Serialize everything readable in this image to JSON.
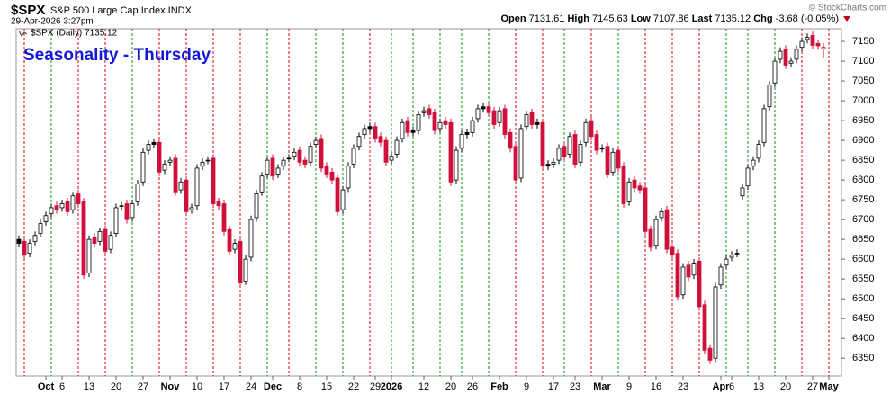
{
  "chart_data": {
    "type": "candlestick",
    "symbol": "$SPX",
    "name": "S&P 500 Large Cap Index INDX",
    "timestamp": "29-Apr-2026 3:27pm",
    "copyright": "© StockCharts.com",
    "legend": "$SPX (Daily) 7135.12",
    "title": "Seasonality - Thursday",
    "quote": [
      {
        "label": "Open",
        "value": 7131.61
      },
      {
        "label": "High",
        "value": 7145.63
      },
      {
        "label": "Low",
        "value": 7107.86
      },
      {
        "label": "Last",
        "value": 7135.12
      },
      {
        "label": "Chg",
        "value": -3.68,
        "extra": "(-0.05%)"
      }
    ],
    "up_color": "#000000",
    "down_color": "#d0103a",
    "ylim": [
      6305,
      7182
    ],
    "yticks": [
      6350,
      6400,
      6450,
      6500,
      6550,
      6600,
      6650,
      6700,
      6750,
      6800,
      6850,
      6900,
      6950,
      7000,
      7050,
      7100,
      7150
    ],
    "categories": [
      null,
      null,
      null,
      null,
      null,
      "Oct",
      null,
      null,
      "6",
      null,
      null,
      null,
      null,
      "13",
      null,
      null,
      null,
      null,
      "20",
      null,
      null,
      null,
      null,
      "27",
      null,
      null,
      null,
      null,
      "Nov",
      null,
      null,
      null,
      null,
      "10",
      null,
      null,
      null,
      null,
      "17",
      null,
      null,
      null,
      null,
      "24",
      null,
      null,
      null,
      "Dec",
      null,
      null,
      null,
      null,
      "8",
      null,
      null,
      null,
      null,
      "15",
      null,
      null,
      null,
      null,
      "22",
      null,
      null,
      null,
      "29",
      null,
      null,
      "2026",
      null,
      null,
      null,
      null,
      null,
      "12",
      null,
      null,
      null,
      null,
      "20",
      null,
      null,
      null,
      "26",
      null,
      null,
      null,
      null,
      "Feb",
      null,
      null,
      null,
      null,
      "9",
      null,
      null,
      null,
      null,
      "17",
      null,
      null,
      null,
      "23",
      null,
      null,
      null,
      null,
      "Mar",
      null,
      null,
      null,
      null,
      "9",
      null,
      null,
      null,
      null,
      "16",
      null,
      null,
      null,
      null,
      "23",
      null,
      null,
      null,
      null,
      null,
      null,
      "Apr",
      null,
      "6",
      null,
      null,
      null,
      null,
      "13",
      null,
      null,
      null,
      null,
      "20",
      null,
      null,
      null,
      null,
      "27",
      null,
      null,
      "May"
    ],
    "thursday_line": [
      null,
      "#d40000",
      null,
      null,
      null,
      null,
      "#009a00",
      null,
      null,
      null,
      null,
      "#d40000",
      null,
      null,
      null,
      null,
      "#d40000",
      null,
      null,
      null,
      null,
      "#009a00",
      null,
      null,
      null,
      null,
      "#d40000",
      null,
      null,
      null,
      null,
      "#d40000",
      null,
      null,
      null,
      null,
      "#d40000",
      null,
      null,
      null,
      null,
      "#d40000",
      null,
      null,
      null,
      null,
      "#009a00",
      null,
      null,
      null,
      "#d40000",
      null,
      null,
      null,
      null,
      "#009a00",
      null,
      null,
      null,
      null,
      "#009a00",
      null,
      null,
      null,
      null,
      "#d40000",
      null,
      null,
      null,
      "#009a00",
      null,
      null,
      null,
      "#009a00",
      null,
      null,
      null,
      null,
      "#009a00",
      null,
      null,
      null,
      "#009a00",
      null,
      null,
      null,
      null,
      "#009a00",
      null,
      null,
      null,
      null,
      "#d40000",
      null,
      null,
      null,
      null,
      "#d40000",
      null,
      null,
      null,
      "#009a00",
      null,
      null,
      null,
      null,
      "#d40000",
      null,
      null,
      null,
      null,
      "#009a00",
      null,
      null,
      null,
      null,
      "#d40000",
      null,
      null,
      null,
      null,
      "#d40000",
      null,
      null,
      null,
      null,
      "#d40000",
      null,
      null,
      null,
      null,
      "#009a00",
      null,
      null,
      null,
      "#009a00",
      null,
      null,
      null,
      null,
      "#009a00",
      null,
      null,
      null,
      null,
      "#d40000",
      null,
      null,
      null,
      null,
      "#d40000"
    ],
    "open": [
      6650,
      6645,
      6615,
      6645,
      6665,
      6695,
      6715,
      6735,
      6730,
      6745,
      6725,
      6765,
      6745,
      6565,
      6655,
      6645,
      6675,
      6625,
      6665,
      6735,
      6740,
      6705,
      6745,
      6795,
      6875,
      6895,
      6895,
      6825,
      6845,
      6855,
      6775,
      6800,
      6725,
      6735,
      6835,
      6850,
      6855,
      6745,
      6740,
      6675,
      6625,
      6645,
      6545,
      6605,
      6705,
      6770,
      6815,
      6855,
      6815,
      6835,
      6855,
      6860,
      6875,
      6850,
      6845,
      6890,
      6905,
      6835,
      6820,
      6805,
      6725,
      6780,
      6840,
      6885,
      6915,
      6935,
      6935,
      6910,
      6900,
      6850,
      6865,
      6905,
      6950,
      6925,
      6925,
      6970,
      6980,
      6970,
      6930,
      6950,
      6945,
      6800,
      6880,
      6920,
      6920,
      6955,
      6985,
      6985,
      6975,
      6945,
      6980,
      6920,
      6885,
      6805,
      6935,
      6970,
      6945,
      6945,
      6840,
      6840,
      6850,
      6885,
      6865,
      6915,
      6845,
      6895,
      6950,
      6915,
      6880,
      6885,
      6820,
      6875,
      6835,
      6745,
      6800,
      6785,
      6780,
      6675,
      6635,
      6705,
      6725,
      6630,
      6615,
      6510,
      6585,
      6560,
      6595,
      6485,
      6375,
      6350,
      6535,
      6585,
      6605,
      6615,
      6760,
      6785,
      6835,
      6855,
      6895,
      6985,
      7045,
      7105,
      7130,
      7095,
      7105,
      7135,
      7155,
      7165,
      7145,
      7131.61,
      null
    ],
    "high": [
      6660,
      6655,
      6650,
      6670,
      6700,
      6720,
      6740,
      6745,
      6750,
      6755,
      6770,
      6775,
      6755,
      6660,
      6665,
      6680,
      6685,
      6670,
      6740,
      6745,
      6750,
      6750,
      6800,
      6880,
      6900,
      6905,
      6905,
      6850,
      6860,
      6865,
      6805,
      6810,
      6740,
      6840,
      6855,
      6860,
      6865,
      6755,
      6750,
      6685,
      6650,
      6655,
      6610,
      6710,
      6775,
      6820,
      6860,
      6865,
      6840,
      6860,
      6865,
      6880,
      6885,
      6860,
      6895,
      6910,
      6915,
      6845,
      6830,
      6815,
      6785,
      6845,
      6890,
      6920,
      6940,
      6945,
      6945,
      6920,
      6910,
      6870,
      6910,
      6955,
      6960,
      6935,
      6975,
      6985,
      6990,
      6980,
      6955,
      6960,
      6955,
      6885,
      6925,
      6930,
      6960,
      6990,
      6995,
      6995,
      6985,
      6985,
      6990,
      6930,
      6895,
      6940,
      6975,
      6980,
      6955,
      6955,
      6850,
      6855,
      6890,
      6895,
      6920,
      6925,
      6900,
      6955,
      6960,
      6925,
      6890,
      6895,
      6880,
      6885,
      6845,
      6805,
      6810,
      6795,
      6790,
      6685,
      6710,
      6730,
      6735,
      6640,
      6625,
      6590,
      6595,
      6600,
      6605,
      6495,
      6385,
      6540,
      6590,
      6610,
      6620,
      6625,
      6790,
      6840,
      6860,
      6900,
      6990,
      7050,
      7110,
      7135,
      7140,
      7110,
      7140,
      7160,
      7170,
      7175,
      7155,
      7145.63,
      null
    ],
    "low": [
      6630,
      6600,
      6605,
      6635,
      6655,
      6685,
      6705,
      6715,
      6720,
      6710,
      6715,
      6730,
      6550,
      6555,
      6630,
      6635,
      6610,
      6615,
      6655,
      6725,
      6690,
      6695,
      6735,
      6785,
      6865,
      6880,
      6810,
      6815,
      6835,
      6760,
      6765,
      6710,
      6715,
      6725,
      6825,
      6840,
      6730,
      6725,
      6660,
      6610,
      6615,
      6530,
      6535,
      6595,
      6695,
      6760,
      6805,
      6800,
      6805,
      6825,
      6845,
      6850,
      6835,
      6830,
      6835,
      6880,
      6820,
      6805,
      6790,
      6710,
      6715,
      6770,
      6830,
      6875,
      6905,
      6920,
      6895,
      6885,
      6835,
      6840,
      6855,
      6895,
      6910,
      6910,
      6915,
      6960,
      6955,
      6915,
      6920,
      6930,
      6785,
      6790,
      6870,
      6905,
      6910,
      6945,
      6970,
      6960,
      6930,
      6935,
      6905,
      6870,
      6790,
      6795,
      6925,
      6930,
      6930,
      6825,
      6825,
      6830,
      6840,
      6850,
      6855,
      6830,
      6835,
      6885,
      6900,
      6865,
      6870,
      6805,
      6810,
      6820,
      6730,
      6735,
      6770,
      6765,
      6660,
      6620,
      6625,
      6695,
      6615,
      6600,
      6495,
      6500,
      6545,
      6550,
      6470,
      6360,
      6335,
      6340,
      6525,
      6575,
      6595,
      6605,
      6750,
      6775,
      6825,
      6845,
      6885,
      6975,
      7035,
      7095,
      7080,
      7085,
      7095,
      7125,
      7145,
      7130,
      7128.8,
      7107.86,
      null
    ],
    "close": [
      6640,
      6610,
      6640,
      6660,
      6690,
      6710,
      6730,
      6725,
      6740,
      6720,
      6760,
      6740,
      6560,
      6650,
      6640,
      6670,
      6620,
      6660,
      6730,
      6735,
      6700,
      6740,
      6790,
      6870,
      6890,
      6890,
      6820,
      6840,
      6850,
      6770,
      6795,
      6720,
      6730,
      6830,
      6845,
      6850,
      6740,
      6735,
      6670,
      6620,
      6640,
      6540,
      6600,
      6700,
      6765,
      6810,
      6850,
      6810,
      6830,
      6850,
      6855,
      6870,
      6845,
      6840,
      6885,
      6900,
      6830,
      6815,
      6800,
      6720,
      6775,
      6835,
      6880,
      6910,
      6930,
      6930,
      6905,
      6895,
      6845,
      6860,
      6900,
      6945,
      6920,
      6920,
      6965,
      6975,
      6965,
      6925,
      6945,
      6940,
      6795,
      6875,
      6915,
      6915,
      6950,
      6980,
      6980,
      6970,
      6940,
      6975,
      6915,
      6880,
      6800,
      6930,
      6965,
      6940,
      6940,
      6835,
      6835,
      6845,
      6880,
      6860,
      6910,
      6840,
      6890,
      6945,
      6910,
      6875,
      6880,
      6815,
      6870,
      6830,
      6740,
      6795,
      6780,
      6775,
      6670,
      6630,
      6700,
      6720,
      6625,
      6610,
      6505,
      6580,
      6555,
      6590,
      6480,
      6370,
      6345,
      6530,
      6580,
      6600,
      6610,
      6615,
      6780,
      6830,
      6850,
      6890,
      6980,
      7040,
      7100,
      7125,
      7090,
      7100,
      7130,
      7150,
      7160,
      7140,
      7138.8,
      7135.12,
      null
    ]
  }
}
